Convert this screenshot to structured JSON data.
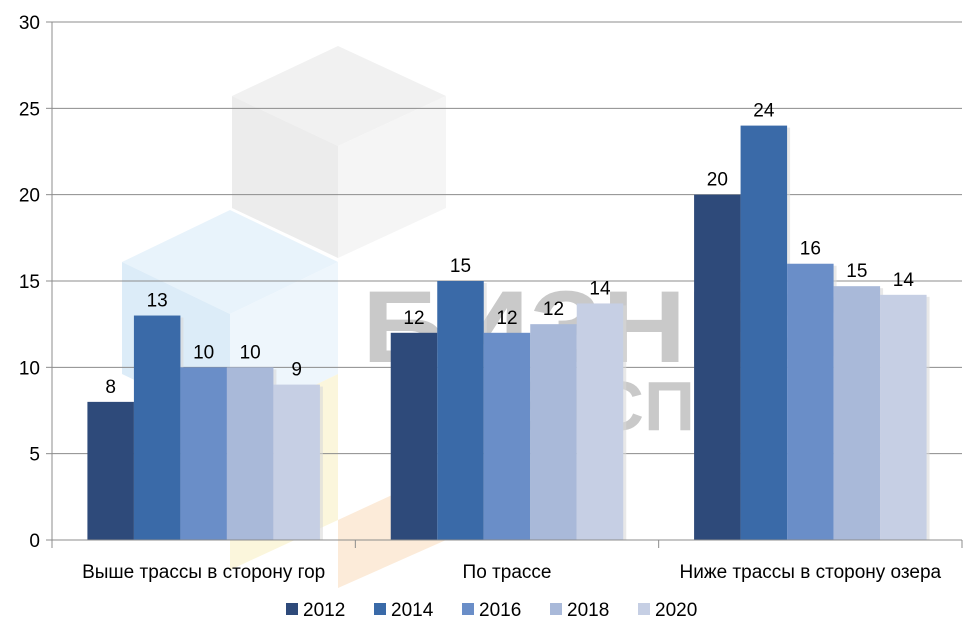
{
  "watermark": {
    "line1": "БИЗНЕС",
    "line2": "ЭКСПЕРТ"
  },
  "chart_data": {
    "type": "bar",
    "categories": [
      "Выше трассы в сторону гор",
      "По трассе",
      "Ниже трассы в сторону озера"
    ],
    "series": [
      {
        "name": "2012",
        "values": [
          8,
          12,
          20
        ],
        "labels": [
          "8",
          "12",
          "20"
        ],
        "color": "#2e4a7a"
      },
      {
        "name": "2014",
        "values": [
          13,
          15,
          24
        ],
        "labels": [
          "13",
          "15",
          "24"
        ],
        "color": "#3a6aa8"
      },
      {
        "name": "2016",
        "values": [
          10,
          12,
          16
        ],
        "labels": [
          "10",
          "12",
          "16"
        ],
        "color": "#6a8ec8"
      },
      {
        "name": "2018",
        "values": [
          10,
          12.5,
          14.7
        ],
        "labels": [
          "10",
          "12",
          "15"
        ],
        "color": "#a9b9d9"
      },
      {
        "name": "2020",
        "values": [
          9,
          13.7,
          14.2
        ],
        "labels": [
          "9",
          "14",
          "14"
        ],
        "color": "#c6cfe4"
      }
    ],
    "yticks": [
      "0",
      "5",
      "10",
      "15",
      "20",
      "25",
      "30"
    ],
    "ylim": [
      0,
      30
    ],
    "grid": true,
    "legend": "bottom",
    "title": "",
    "xlabel": "",
    "ylabel": ""
  }
}
